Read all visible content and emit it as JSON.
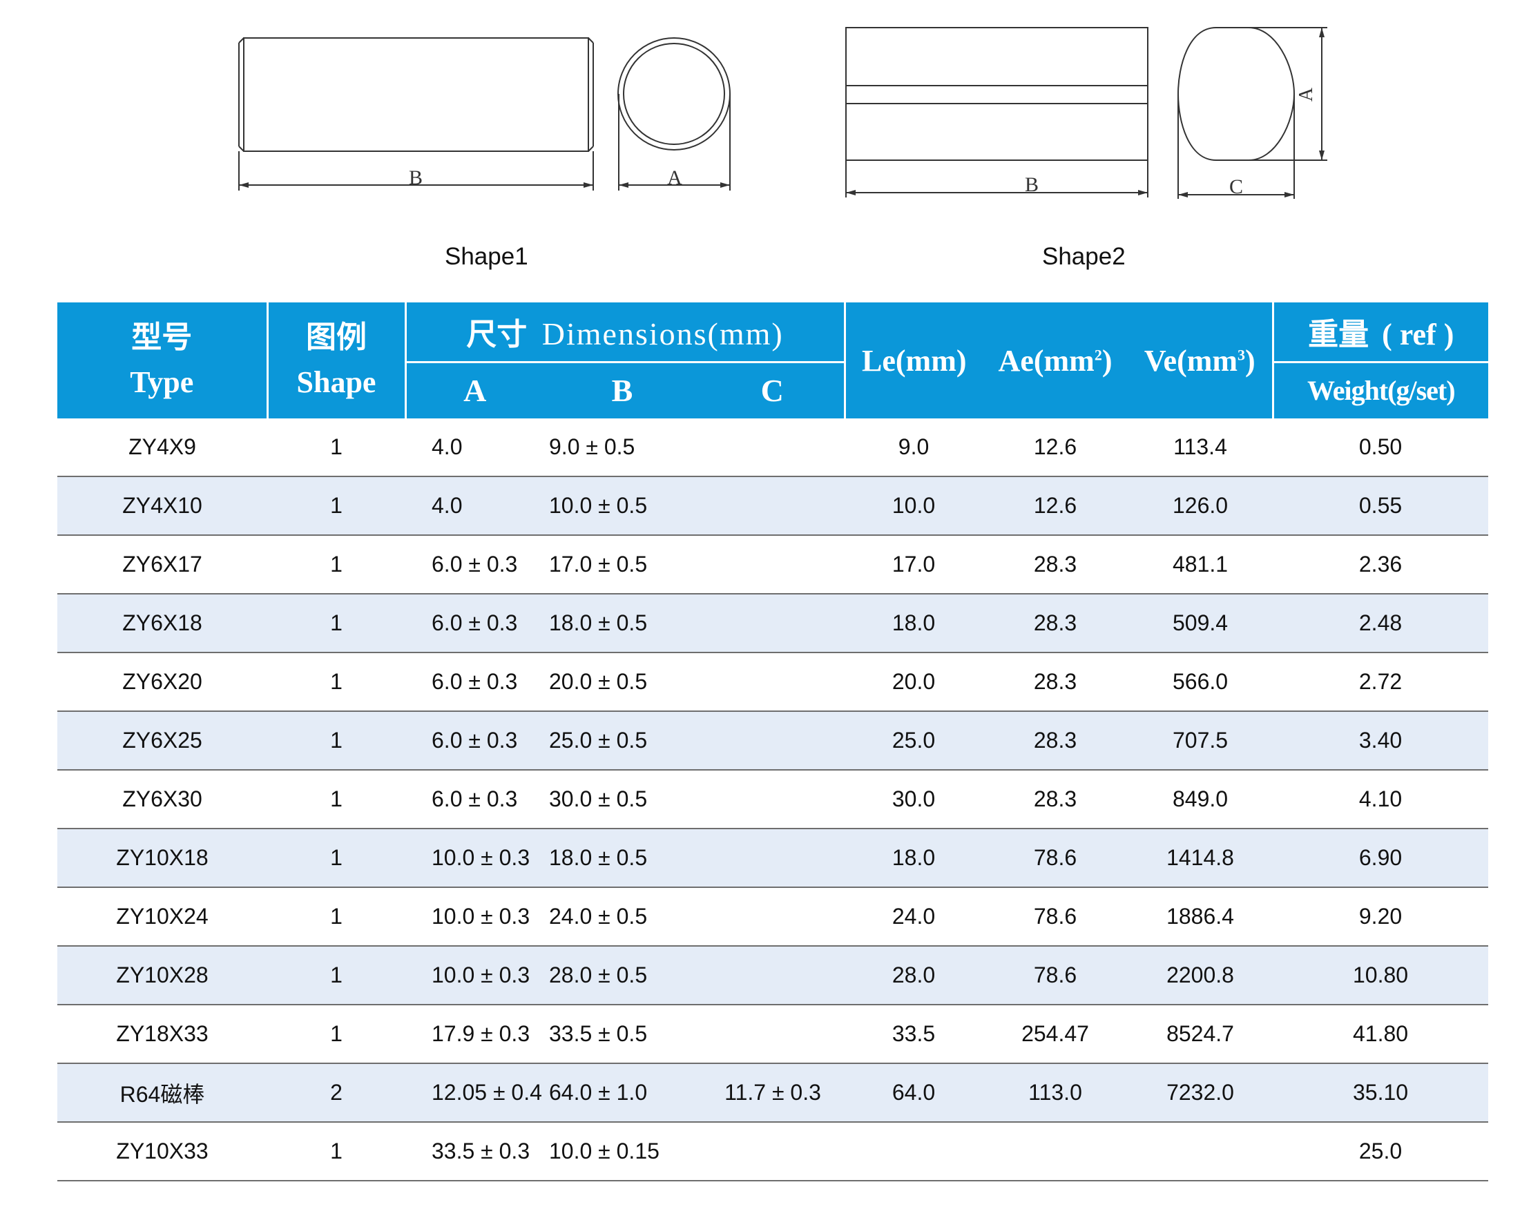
{
  "shape_labels": {
    "shape1": "Shape1",
    "shape2": "Shape2"
  },
  "dimension_letters": {
    "shape1_b": "B",
    "shape1_a": "A",
    "shape2_b": "B",
    "shape2_c": "C",
    "shape2_a": "A"
  },
  "header": {
    "type_zh": "型号",
    "type_en": "Type",
    "shape_zh": "图例",
    "shape_en": "Shape",
    "dim_zh": "尺寸",
    "dim_en": "Dimensions(mm)",
    "col_a": "A",
    "col_b": "B",
    "col_c": "C",
    "le": "Le(mm)",
    "ae_base": "Ae(mm",
    "ae_sup": "2",
    "ae_close": ")",
    "ve_base": "Ve(mm",
    "ve_sup": "3",
    "ve_close": ")",
    "weight_zh": "重量",
    "weight_ref": "( ref )",
    "weight_en": "Weight(g/set)"
  },
  "rows": [
    {
      "type": "ZY4X9",
      "shape": "1",
      "a": "4.0",
      "b": "9.0 ± 0.5",
      "c": "",
      "le": "9.0",
      "ae": "12.6",
      "ve": "113.4",
      "weight": "0.50"
    },
    {
      "type": "ZY4X10",
      "shape": "1",
      "a": "4.0",
      "b": "10.0 ± 0.5",
      "c": "",
      "le": "10.0",
      "ae": "12.6",
      "ve": "126.0",
      "weight": "0.55"
    },
    {
      "type": "ZY6X17",
      "shape": "1",
      "a": "6.0 ± 0.3",
      "b": "17.0 ± 0.5",
      "c": "",
      "le": "17.0",
      "ae": "28.3",
      "ve": "481.1",
      "weight": "2.36"
    },
    {
      "type": "ZY6X18",
      "shape": "1",
      "a": "6.0 ± 0.3",
      "b": "18.0 ± 0.5",
      "c": "",
      "le": "18.0",
      "ae": "28.3",
      "ve": "509.4",
      "weight": "2.48"
    },
    {
      "type": "ZY6X20",
      "shape": "1",
      "a": "6.0 ± 0.3",
      "b": "20.0 ± 0.5",
      "c": "",
      "le": "20.0",
      "ae": "28.3",
      "ve": "566.0",
      "weight": "2.72"
    },
    {
      "type": "ZY6X25",
      "shape": "1",
      "a": "6.0 ± 0.3",
      "b": "25.0 ± 0.5",
      "c": "",
      "le": "25.0",
      "ae": "28.3",
      "ve": "707.5",
      "weight": "3.40"
    },
    {
      "type": "ZY6X30",
      "shape": "1",
      "a": "6.0 ± 0.3",
      "b": "30.0 ± 0.5",
      "c": "",
      "le": "30.0",
      "ae": "28.3",
      "ve": "849.0",
      "weight": "4.10"
    },
    {
      "type": "ZY10X18",
      "shape": "1",
      "a": "10.0 ± 0.3",
      "b": "18.0 ± 0.5",
      "c": "",
      "le": "18.0",
      "ae": "78.6",
      "ve": "1414.8",
      "weight": "6.90"
    },
    {
      "type": "ZY10X24",
      "shape": "1",
      "a": "10.0 ± 0.3",
      "b": "24.0 ± 0.5",
      "c": "",
      "le": "24.0",
      "ae": "78.6",
      "ve": "1886.4",
      "weight": "9.20"
    },
    {
      "type": "ZY10X28",
      "shape": "1",
      "a": "10.0 ± 0.3",
      "b": "28.0 ± 0.5",
      "c": "",
      "le": "28.0",
      "ae": "78.6",
      "ve": "2200.8",
      "weight": "10.80"
    },
    {
      "type": "ZY18X33",
      "shape": "1",
      "a": "17.9 ± 0.3",
      "b": "33.5 ± 0.5",
      "c": "",
      "le": "33.5",
      "ae": "254.47",
      "ve": "8524.7",
      "weight": "41.80"
    },
    {
      "type": "R64磁棒",
      "shape": "2",
      "a": "12.05 ± 0.4",
      "b": "64.0 ± 1.0",
      "c": "11.7 ± 0.3",
      "le": "64.0",
      "ae": "113.0",
      "ve": "7232.0",
      "weight": "35.10"
    },
    {
      "type": "ZY10X33",
      "shape": "1",
      "a": "33.5 ± 0.3",
      "b": "10.0 ± 0.15",
      "c": "",
      "le": "",
      "ae": "",
      "ve": "",
      "weight": "25.0"
    }
  ]
}
